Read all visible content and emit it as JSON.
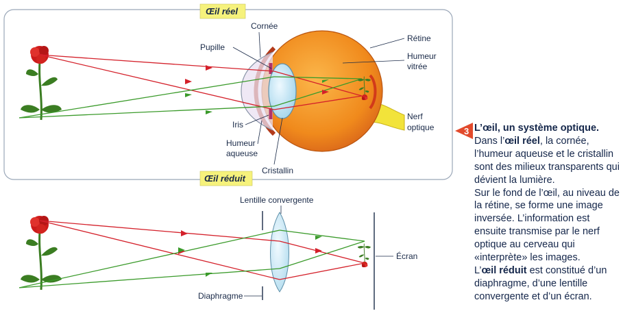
{
  "tags": {
    "real_eye": "Œil réel",
    "reduced_eye": "Œil réduit"
  },
  "labels": {
    "cornea": "Cornée",
    "pupil": "Pupille",
    "retina": "Rétine",
    "vitreous_1": "Humeur",
    "vitreous_2": "vitrée",
    "nerve_1": "Nerf",
    "nerve_2": "optique",
    "iris": "Iris",
    "aqueous_1": "Humeur",
    "aqueous_2": "aqueuse",
    "lens": "Cristallin",
    "converging_lens": "Lentille convergente",
    "screen": "Écran",
    "diaphragm": "Diaphragme"
  },
  "caption": {
    "number": "3",
    "title": "L’œil, un système optique.",
    "p1_a": "Dans l’",
    "p1_b": "œil réel",
    "p1_c": ", la cornée, l’humeur aqueuse et le cristallin sont des milieux transparents qui dévient la lumière.",
    "p2": "Sur le fond de l’œil, au niveau de la rétine, se forme une image inversée. L’information est ensuite transmise par le nerf optique au cerveau qui «interprète» les images.",
    "p3_a": "L’",
    "p3_b": "œil réduit",
    "p3_c": " est constitué d’un diaphragme, d’une lentille convergente et d’un écran."
  },
  "colors": {
    "frame": "#9aa7b8",
    "tag_bg": "#f6f27c",
    "red_ray": "#d4202a",
    "green_ray": "#3a9a2a",
    "rose": "#cc1b1b",
    "leaf": "#3b7d22",
    "eyeball": "#f08a1c",
    "nerve": "#f2e33a",
    "lens": "#bfe6f5",
    "text": "#1a2a48",
    "badge": "#e24a2c"
  },
  "icons": [
    "rose-icon",
    "arrow-icon"
  ]
}
